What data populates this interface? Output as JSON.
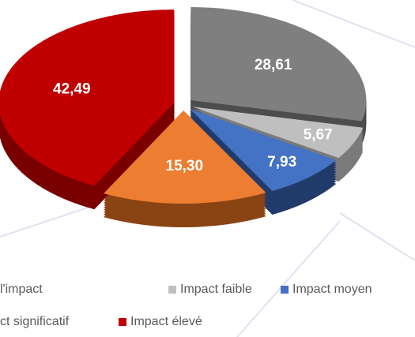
{
  "chart_data": {
    "type": "pie",
    "categories": [
      "l'impact",
      "Impact faible",
      "Impact moyen",
      "ct significatif",
      "Impact élevé"
    ],
    "values": [
      28.61,
      5.67,
      7.93,
      15.3,
      42.49
    ],
    "value_labels": [
      "28,61",
      "5,67",
      "7,93",
      "15,30",
      "42,49"
    ],
    "colors": [
      "#7f7f7f",
      "#bfbfbf",
      "#4472c4",
      "#ed7d31",
      "#c00000"
    ],
    "side_colors": [
      "#4d4d4d",
      "#7a7a7a",
      "#213b6b",
      "#8a4413",
      "#7a0000"
    ]
  }
}
